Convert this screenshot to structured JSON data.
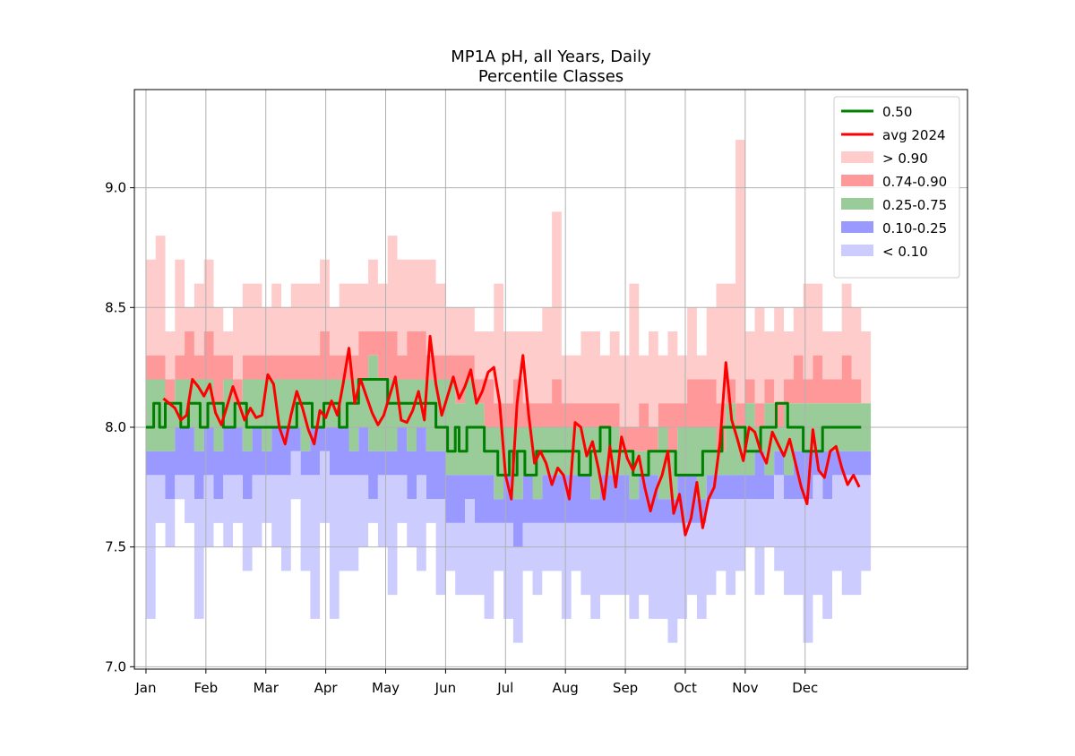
{
  "chart_data": {
    "type": "area",
    "title": "MP1A pH, all Years, Daily",
    "subtitle": "Percentile Classes",
    "xlabel": "",
    "ylabel": "",
    "xlim": [
      -6,
      425
    ],
    "ylim": [
      6.99,
      9.41
    ],
    "yticks": [
      7.0,
      7.5,
      8.0,
      8.5,
      9.0
    ],
    "ytick_labels": [
      "7.0",
      "7.5",
      "8.0",
      "8.5",
      "9.0"
    ],
    "xticks": [
      0,
      31,
      62,
      93,
      124,
      155,
      186,
      217,
      248,
      279,
      310,
      341
    ],
    "xtick_labels": [
      "Jan",
      "Feb",
      "Mar",
      "Apr",
      "May",
      "Jun",
      "Jul",
      "Aug",
      "Sep",
      "Oct",
      "Nov",
      "Dec"
    ],
    "grid": true,
    "legend_position": "top-right",
    "legend": [
      {
        "label": "0.50",
        "kind": "line",
        "color": "#008000"
      },
      {
        "label": "avg 2024",
        "kind": "line",
        "color": "#ff0000"
      },
      {
        "label": "> 0.90",
        "kind": "patch",
        "color": "#ffcccc"
      },
      {
        "label": "0.74-0.90",
        "kind": "patch",
        "color": "#ff9999"
      },
      {
        "label": "0.25-0.75",
        "kind": "patch",
        "color": "#99cc99"
      },
      {
        "label": "0.10-0.25",
        "kind": "patch",
        "color": "#9999ff"
      },
      {
        "label": "< 0.10",
        "kind": "patch",
        "color": "#ccccff"
      }
    ],
    "x_unit": "day of year (0 = Jan 1)",
    "bands_x": [
      0,
      5,
      10,
      15,
      20,
      25,
      30,
      35,
      40,
      45,
      50,
      55,
      60,
      65,
      70,
      75,
      80,
      85,
      90,
      95,
      100,
      105,
      110,
      115,
      120,
      125,
      130,
      135,
      140,
      145,
      150,
      155,
      160,
      165,
      170,
      175,
      180,
      185,
      190,
      195,
      200,
      205,
      210,
      215,
      220,
      225,
      230,
      235,
      240,
      245,
      250,
      255,
      260,
      265,
      270,
      275,
      280,
      285,
      290,
      295,
      300,
      305,
      310,
      315,
      320,
      325,
      330,
      335,
      340,
      345,
      350,
      355,
      360,
      365,
      370
    ],
    "bands": {
      "max": [
        8.7,
        8.8,
        8.4,
        8.7,
        8.5,
        8.6,
        8.7,
        8.5,
        8.4,
        8.5,
        8.6,
        8.6,
        8.5,
        8.6,
        8.5,
        8.6,
        8.6,
        8.6,
        8.7,
        8.5,
        8.6,
        8.6,
        8.6,
        8.7,
        8.6,
        8.8,
        8.7,
        8.7,
        8.7,
        8.7,
        8.6,
        8.5,
        8.5,
        8.5,
        8.4,
        8.4,
        8.6,
        8.4,
        8.4,
        8.4,
        8.4,
        8.5,
        8.9,
        8.3,
        8.3,
        8.4,
        8.4,
        8.3,
        8.4,
        8.3,
        8.6,
        8.3,
        8.4,
        8.3,
        8.4,
        8.3,
        8.5,
        8.3,
        8.5,
        8.6,
        8.6,
        9.2,
        8.4,
        8.5,
        8.4,
        8.5,
        8.4,
        8.5,
        8.6,
        8.6,
        8.4,
        8.4,
        8.6,
        8.5,
        8.4
      ],
      "p90": [
        8.3,
        8.3,
        8.2,
        8.3,
        8.4,
        8.3,
        8.4,
        8.3,
        8.3,
        8.2,
        8.3,
        8.3,
        8.3,
        8.3,
        8.3,
        8.3,
        8.3,
        8.3,
        8.4,
        8.3,
        8.3,
        8.3,
        8.4,
        8.4,
        8.4,
        8.4,
        8.3,
        8.4,
        8.4,
        8.3,
        8.3,
        8.3,
        8.3,
        8.3,
        8.2,
        8.2,
        8.1,
        8.1,
        8.2,
        8.1,
        8.1,
        8.1,
        8.2,
        8.1,
        8.1,
        8.1,
        8.1,
        8.1,
        8.1,
        8.0,
        8.0,
        8.1,
        8.0,
        8.1,
        8.1,
        8.1,
        8.2,
        8.2,
        8.2,
        8.1,
        8.2,
        8.1,
        8.2,
        8.1,
        8.2,
        8.1,
        8.2,
        8.3,
        8.2,
        8.3,
        8.2,
        8.2,
        8.3,
        8.2,
        8.1
      ],
      "p75": [
        8.2,
        8.2,
        8.1,
        8.2,
        8.2,
        8.2,
        8.2,
        8.1,
        8.2,
        8.1,
        8.2,
        8.2,
        8.2,
        8.2,
        8.2,
        8.2,
        8.2,
        8.2,
        8.2,
        8.2,
        8.2,
        8.2,
        8.2,
        8.3,
        8.2,
        8.2,
        8.2,
        8.2,
        8.2,
        8.2,
        8.2,
        8.2,
        8.1,
        8.2,
        8.1,
        8.0,
        8.0,
        8.0,
        8.0,
        8.0,
        8.0,
        8.0,
        8.0,
        8.0,
        8.0,
        8.0,
        8.0,
        8.0,
        8.0,
        7.9,
        7.9,
        7.9,
        7.9,
        8.0,
        7.9,
        8.0,
        8.0,
        8.0,
        8.0,
        7.9,
        8.1,
        8.0,
        8.1,
        8.0,
        8.1,
        8.0,
        8.1,
        8.1,
        8.1,
        8.1,
        8.1,
        8.1,
        8.1,
        8.1,
        8.1
      ],
      "p25": [
        7.9,
        7.9,
        7.9,
        8.0,
        8.0,
        7.9,
        8.0,
        7.9,
        8.0,
        8.0,
        7.9,
        8.0,
        7.9,
        8.0,
        8.0,
        8.0,
        7.9,
        8.0,
        8.0,
        8.0,
        8.0,
        7.9,
        8.0,
        7.9,
        7.9,
        7.9,
        8.0,
        7.9,
        8.0,
        7.9,
        7.9,
        7.8,
        7.8,
        7.8,
        7.8,
        7.8,
        7.7,
        7.8,
        7.7,
        7.8,
        7.7,
        7.8,
        7.8,
        7.8,
        7.8,
        7.8,
        7.7,
        7.8,
        7.8,
        7.8,
        7.7,
        7.8,
        7.8,
        7.7,
        7.7,
        7.8,
        7.8,
        7.7,
        7.8,
        7.8,
        7.8,
        7.8,
        7.8,
        7.9,
        7.8,
        7.9,
        7.8,
        7.9,
        7.9,
        7.9,
        7.9,
        7.9,
        7.9,
        7.9,
        7.9
      ],
      "p10": [
        7.8,
        7.8,
        7.7,
        7.8,
        7.8,
        7.7,
        7.8,
        7.7,
        7.8,
        7.8,
        7.7,
        7.8,
        7.8,
        7.8,
        7.8,
        7.9,
        7.8,
        7.8,
        7.9,
        7.8,
        7.8,
        7.8,
        7.8,
        7.7,
        7.8,
        7.8,
        7.8,
        7.7,
        7.8,
        7.7,
        7.7,
        7.6,
        7.6,
        7.7,
        7.6,
        7.6,
        7.6,
        7.6,
        7.5,
        7.6,
        7.6,
        7.6,
        7.6,
        7.6,
        7.6,
        7.6,
        7.6,
        7.6,
        7.6,
        7.6,
        7.6,
        7.6,
        7.6,
        7.6,
        7.6,
        7.6,
        7.6,
        7.6,
        7.7,
        7.7,
        7.7,
        7.7,
        7.7,
        7.7,
        7.7,
        7.8,
        7.7,
        7.7,
        7.7,
        7.8,
        7.7,
        7.8,
        7.8,
        7.8,
        7.8
      ],
      "min": [
        7.2,
        7.6,
        7.5,
        7.7,
        7.6,
        7.2,
        7.5,
        7.6,
        7.5,
        7.6,
        7.4,
        7.5,
        7.6,
        7.5,
        7.4,
        7.7,
        7.4,
        7.2,
        7.6,
        7.2,
        7.4,
        7.4,
        7.5,
        7.6,
        7.5,
        7.3,
        7.6,
        7.5,
        7.4,
        7.6,
        7.3,
        7.4,
        7.3,
        7.3,
        7.3,
        7.2,
        7.4,
        7.2,
        7.1,
        7.4,
        7.3,
        7.4,
        7.4,
        7.2,
        7.4,
        7.3,
        7.2,
        7.3,
        7.3,
        7.3,
        7.2,
        7.3,
        7.2,
        7.2,
        7.1,
        7.2,
        7.3,
        7.2,
        7.3,
        7.4,
        7.3,
        7.4,
        7.5,
        7.3,
        7.5,
        7.4,
        7.3,
        7.3,
        7.1,
        7.3,
        7.2,
        7.4,
        7.3,
        7.3,
        7.4
      ]
    },
    "series": [
      {
        "name": "0.50",
        "color": "#008000",
        "x": [
          0,
          4,
          4,
          7,
          7,
          10,
          10,
          18,
          18,
          22,
          22,
          28,
          28,
          32,
          32,
          40,
          40,
          46,
          46,
          52,
          52,
          78,
          78,
          86,
          86,
          92,
          92,
          100,
          100,
          104,
          104,
          110,
          110,
          125,
          125,
          136,
          136,
          150,
          150,
          156,
          156,
          160,
          160,
          162,
          162,
          166,
          166,
          175,
          175,
          182,
          182,
          188,
          188,
          190,
          190,
          192,
          192,
          196,
          196,
          202,
          202,
          205,
          205,
          224,
          224,
          230,
          230,
          235,
          235,
          240,
          240,
          246,
          246,
          252,
          252,
          260,
          260,
          274,
          274,
          280,
          280,
          288,
          288,
          298,
          298,
          310,
          310,
          318,
          318,
          326,
          326,
          332,
          332,
          340,
          340,
          350,
          350,
          365,
          365,
          370
        ],
        "y": [
          8.0,
          8.0,
          8.1,
          8.1,
          8.0,
          8.0,
          8.1,
          8.1,
          8.0,
          8.0,
          8.1,
          8.1,
          8.0,
          8.0,
          8.1,
          8.1,
          8.0,
          8.0,
          8.1,
          8.1,
          8.0,
          8.0,
          8.1,
          8.1,
          8.0,
          8.0,
          8.1,
          8.1,
          8.0,
          8.0,
          8.1,
          8.1,
          8.2,
          8.2,
          8.1,
          8.1,
          8.1,
          8.1,
          8.0,
          8.0,
          7.9,
          7.9,
          8.0,
          8.0,
          7.9,
          7.9,
          8.0,
          8.0,
          7.9,
          7.9,
          7.8,
          7.8,
          7.9,
          7.9,
          7.8,
          7.8,
          7.9,
          7.9,
          7.8,
          7.8,
          7.9,
          7.9,
          7.9,
          7.9,
          7.8,
          7.8,
          7.9,
          7.9,
          8.0,
          8.0,
          7.9,
          7.9,
          7.9,
          7.9,
          7.8,
          7.8,
          7.9,
          7.9,
          7.8,
          7.8,
          7.8,
          7.8,
          7.9,
          7.9,
          8.0,
          8.0,
          7.9,
          7.9,
          8.0,
          8.0,
          8.1,
          8.1,
          8.0,
          8.0,
          7.9,
          7.9,
          8.0,
          8.0,
          8.0,
          8.0
        ]
      },
      {
        "name": "avg 2024",
        "color": "#ff0000",
        "x": [
          9,
          12,
          15,
          18,
          21,
          24,
          27,
          30,
          33,
          36,
          39,
          42,
          45,
          48,
          51,
          54,
          57,
          60,
          63,
          66,
          69,
          72,
          75,
          78,
          81,
          84,
          87,
          90,
          93,
          96,
          99,
          102,
          105,
          108,
          111,
          114,
          117,
          120,
          123,
          126,
          129,
          132,
          135,
          138,
          141,
          144,
          147,
          150,
          153,
          156,
          159,
          162,
          165,
          168,
          171,
          174,
          177,
          180,
          183,
          186,
          189,
          192,
          195,
          198,
          201,
          204,
          207,
          210,
          213,
          216,
          219,
          222,
          225,
          228,
          231,
          234,
          237,
          240,
          243,
          246,
          249,
          252,
          255,
          258,
          261,
          264,
          267,
          270,
          273,
          276,
          279,
          282,
          285,
          288,
          291,
          294,
          297,
          300,
          303,
          306,
          309,
          312,
          315,
          318,
          321,
          324,
          327,
          330,
          333,
          336,
          339,
          342,
          345,
          348,
          351,
          354,
          357,
          360,
          363,
          366,
          369
        ],
        "y": [
          8.12,
          8.1,
          8.08,
          8.03,
          8.05,
          8.2,
          8.17,
          8.13,
          8.18,
          8.06,
          8.01,
          8.09,
          8.17,
          8.1,
          8.03,
          8.08,
          8.04,
          8.05,
          8.22,
          8.18,
          8.0,
          7.93,
          8.05,
          8.15,
          8.08,
          7.99,
          7.93,
          8.07,
          8.04,
          8.11,
          8.05,
          8.18,
          8.33,
          8.1,
          8.2,
          8.13,
          8.06,
          8.01,
          8.05,
          8.13,
          8.21,
          8.03,
          8.02,
          8.07,
          8.15,
          8.03,
          8.38,
          8.18,
          8.05,
          8.13,
          8.21,
          8.12,
          8.17,
          8.24,
          8.1,
          8.15,
          8.23,
          8.25,
          8.1,
          7.8,
          7.7,
          8.1,
          8.3,
          8.05,
          7.85,
          7.9,
          7.85,
          7.76,
          7.83,
          7.8,
          7.7,
          8.02,
          8.0,
          7.88,
          7.94,
          7.83,
          7.7,
          7.92,
          7.75,
          7.96,
          7.87,
          7.82,
          7.88,
          7.75,
          7.65,
          7.74,
          7.8,
          7.9,
          7.64,
          7.72,
          7.55,
          7.62,
          7.77,
          7.58,
          7.7,
          7.75,
          7.94,
          8.27,
          8.03,
          7.95,
          7.86,
          8.0,
          7.98,
          7.9,
          7.85,
          7.98,
          7.93,
          7.88,
          7.95,
          7.85,
          7.75,
          7.68,
          7.99,
          7.82,
          7.79,
          7.9,
          7.92,
          7.83,
          7.76,
          7.8,
          7.75
        ]
      }
    ]
  }
}
